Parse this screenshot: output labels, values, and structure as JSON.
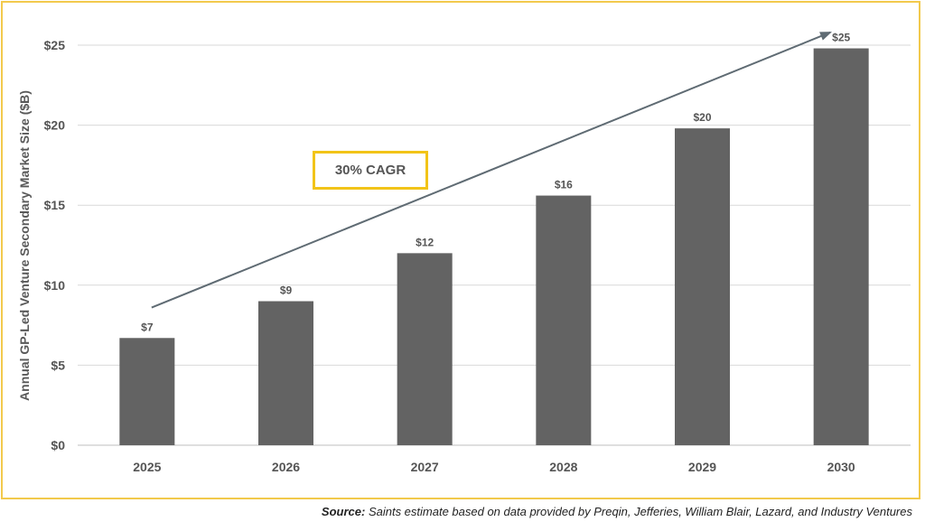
{
  "chart_data": {
    "type": "bar",
    "categories": [
      "2025",
      "2026",
      "2027",
      "2028",
      "2029",
      "2030"
    ],
    "values": [
      6.7,
      9.0,
      12.0,
      15.6,
      19.8,
      24.8
    ],
    "data_labels": [
      "$7",
      "$9",
      "$12",
      "$16",
      "$20",
      "$25"
    ],
    "title": "",
    "xlabel": "",
    "ylabel": "Annual GP-Led Venture Secondary Market Size ($B)",
    "ylim": [
      0,
      25
    ],
    "yticks": [
      0,
      5,
      10,
      15,
      20,
      25
    ],
    "ytick_labels": [
      "$0",
      "$5",
      "$10",
      "$15",
      "$20",
      "$25"
    ],
    "grid": true,
    "bar_color": "#636363",
    "annotation": {
      "text": "30% CAGR",
      "trend_from": 8.6,
      "trend_to": 25.8
    }
  },
  "footer": {
    "source_label": "Source:",
    "source_text": "Saints estimate based on data provided by Preqin, Jefferies, William Blair, Lazard, and Industry Ventures"
  },
  "colors": {
    "frame": "#f2c94c",
    "annotation_box": "#f2c418",
    "arrow": "#5f6b73"
  }
}
